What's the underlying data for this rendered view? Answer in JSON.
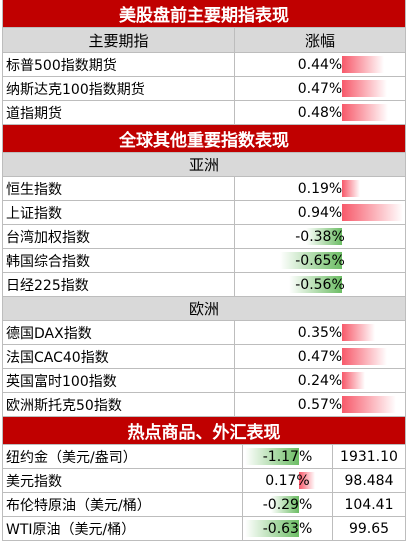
{
  "section1": {
    "title": "美股盘前主要期指表现",
    "header_name": "主要期指",
    "header_change": "涨幅",
    "rows": [
      {
        "name": "标普500指数期货",
        "change": "0.44%",
        "pct": 0.44
      },
      {
        "name": "纳斯达克100指数期货",
        "change": "0.47%",
        "pct": 0.47
      },
      {
        "name": "道指期货",
        "change": "0.48%",
        "pct": 0.48
      }
    ]
  },
  "section2": {
    "title": "全球其他重要指数表现",
    "asia_label": "亚洲",
    "asia_rows": [
      {
        "name": "恒生指数",
        "change": "0.19%",
        "pct": 0.19
      },
      {
        "name": "上证指数",
        "change": "0.94%",
        "pct": 0.94
      },
      {
        "name": "台湾加权指数",
        "change": "-0.38%",
        "pct": -0.38
      },
      {
        "name": "韩国综合指数",
        "change": "-0.65%",
        "pct": -0.65
      },
      {
        "name": "日经225指数",
        "change": "-0.56%",
        "pct": -0.56
      }
    ],
    "europe_label": "欧洲",
    "europe_rows": [
      {
        "name": "德国DAX指数",
        "change": "0.35%",
        "pct": 0.35
      },
      {
        "name": "法国CAC40指数",
        "change": "0.47%",
        "pct": 0.47
      },
      {
        "name": "英国富时100指数",
        "change": "0.24%",
        "pct": 0.24
      },
      {
        "name": "欧洲斯托克50指数",
        "change": "0.57%",
        "pct": 0.57
      }
    ]
  },
  "section3": {
    "title": "热点商品、外汇表现",
    "rows": [
      {
        "name": "纽约金（美元/盎司）",
        "change": "-1.17%",
        "pct": -1.17,
        "price": "1931.10"
      },
      {
        "name": "美元指数",
        "change": "0.17%",
        "pct": 0.17,
        "price": "98.484"
      },
      {
        "name": "布伦特原油（美元/桶）",
        "change": "-0.29%",
        "pct": -0.29,
        "price": "104.41"
      },
      {
        "name": "WTI原油（美元/桶）",
        "change": "-0.63%",
        "pct": -0.63,
        "price": "99.65"
      }
    ]
  },
  "colors": {
    "title_bg": "#c00000",
    "header_bg": "#d9d9d9",
    "positive_bar": "#f7596a",
    "negative_bar": "#6cbd64"
  }
}
